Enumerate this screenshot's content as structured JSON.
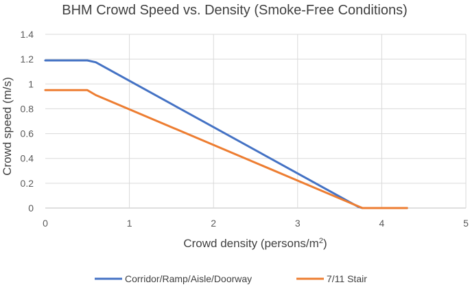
{
  "chart_data": {
    "type": "line",
    "title": "BHM Crowd Speed vs. Density (Smoke-Free Conditions)",
    "xlabel": "Crowd density (persons/m",
    "xlabel_superscript": "2",
    "xlabel_suffix": ")",
    "ylabel": "Crowd speed (m/s)",
    "xlim": [
      0,
      5
    ],
    "ylim": [
      0,
      1.4
    ],
    "x_ticks": [
      "0",
      "1",
      "2",
      "3",
      "4",
      "5"
    ],
    "y_ticks": [
      "0",
      "0.2",
      "0.4",
      "0.6",
      "0.8",
      "1",
      "1.2",
      "1.4"
    ],
    "grid": true,
    "legend_position": "bottom",
    "series": [
      {
        "name": "Corridor/Ramp/Aisle/Doorway",
        "color": "#4472C4",
        "points": [
          [
            0,
            1.19
          ],
          [
            0.5,
            1.19
          ],
          [
            0.6,
            1.175
          ],
          [
            3.72,
            0.01
          ],
          [
            3.77,
            0
          ],
          [
            4.3,
            0
          ]
        ]
      },
      {
        "name": "7/11 Stair",
        "color": "#ED7D31",
        "points": [
          [
            0,
            0.95
          ],
          [
            0.5,
            0.95
          ],
          [
            0.6,
            0.91
          ],
          [
            3.77,
            0
          ],
          [
            4.3,
            0
          ]
        ]
      }
    ]
  }
}
